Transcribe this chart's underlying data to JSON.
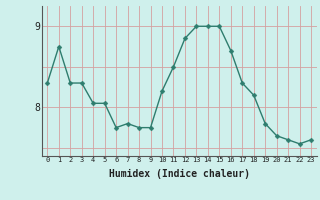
{
  "xlabel": "Humidex (Indice chaleur)",
  "x": [
    0,
    1,
    2,
    3,
    4,
    5,
    6,
    7,
    8,
    9,
    10,
    11,
    12,
    13,
    14,
    15,
    16,
    17,
    18,
    19,
    20,
    21,
    22,
    23
  ],
  "y": [
    8.3,
    8.75,
    8.3,
    8.3,
    8.05,
    8.05,
    7.75,
    7.8,
    7.75,
    7.75,
    8.2,
    8.5,
    8.85,
    9.0,
    9.0,
    9.0,
    8.7,
    8.3,
    8.15,
    7.8,
    7.65,
    7.6,
    7.55,
    7.6
  ],
  "line_color": "#2e7d6e",
  "marker_size": 2.5,
  "bg_color": "#cff0ec",
  "grid_color": "#d4a0a0",
  "ylim": [
    7.4,
    9.25
  ],
  "xlim": [
    -0.5,
    23.5
  ],
  "yticks": [
    8,
    9
  ],
  "xticks": [
    0,
    1,
    2,
    3,
    4,
    5,
    6,
    7,
    8,
    9,
    10,
    11,
    12,
    13,
    14,
    15,
    16,
    17,
    18,
    19,
    20,
    21,
    22,
    23
  ],
  "xlabel_fontsize": 7,
  "ytick_fontsize": 7,
  "xtick_fontsize": 5
}
